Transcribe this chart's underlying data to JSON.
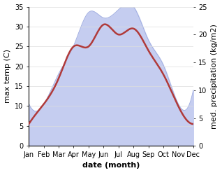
{
  "months": [
    "Jan",
    "Feb",
    "Mar",
    "Apr",
    "May",
    "Jun",
    "Jul",
    "Aug",
    "Sep",
    "Oct",
    "Nov",
    "Dec"
  ],
  "temp_C": [
    5.5,
    10.5,
    17.0,
    25.0,
    25.0,
    30.5,
    28.0,
    29.5,
    24.0,
    18.0,
    10.0,
    5.5
  ],
  "precip_mm": [
    7.5,
    7.5,
    13.0,
    18.0,
    24.0,
    23.0,
    24.5,
    25.0,
    19.0,
    14.5,
    7.5,
    10.0
  ],
  "temp_color": "#b03a3a",
  "precip_fill_color": "#c5cdf0",
  "precip_edge_color": "#9aa8dd",
  "left_ylim": [
    0,
    35
  ],
  "right_ylim": [
    0,
    25
  ],
  "left_yticks": [
    0,
    5,
    10,
    15,
    20,
    25,
    30,
    35
  ],
  "right_yticks": [
    0,
    5,
    10,
    15,
    20,
    25
  ],
  "xlabel": "date (month)",
  "ylabel_left": "max temp (C)",
  "ylabel_right": "med. precipitation (kg/m2)",
  "axis_fontsize": 8,
  "tick_fontsize": 7,
  "bg_color": "#ffffff",
  "line_width": 1.8
}
